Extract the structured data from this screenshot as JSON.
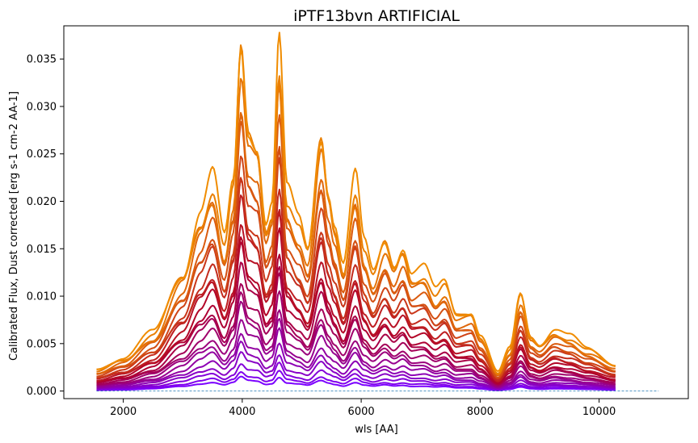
{
  "chart_data": {
    "type": "line",
    "title": "iPTF13bvn ARTIFICIAL",
    "xlabel": "wls [AA]",
    "ylabel": "Calibrated Flux, Dust corrected [erg s-1 cm-2 AA-1]",
    "xlim": [
      1000,
      11500
    ],
    "ylim": [
      -0.0008,
      0.0385
    ],
    "x_ticks": [
      2000,
      4000,
      6000,
      8000,
      10000
    ],
    "y_ticks": [
      0.0,
      0.005,
      0.01,
      0.015,
      0.02,
      0.025,
      0.03,
      0.035
    ],
    "x_tick_labels": [
      "2000",
      "4000",
      "6000",
      "8000",
      "10000"
    ],
    "y_tick_labels": [
      "0.000",
      "0.005",
      "0.010",
      "0.015",
      "0.020",
      "0.025",
      "0.030",
      "0.035"
    ],
    "grid": false,
    "legend": "none",
    "wavelength_range": [
      1550,
      10280
    ],
    "envelope": {
      "x": [
        1550,
        2000,
        2500,
        3000,
        3300,
        3500,
        3700,
        3850,
        3980,
        4100,
        4250,
        4400,
        4500,
        4620,
        4750,
        4950,
        5100,
        5330,
        5450,
        5550,
        5700,
        5900,
        6050,
        6200,
        6400,
        6550,
        6700,
        6850,
        7050,
        7250,
        7400,
        7600,
        7850,
        8000,
        8300,
        8500,
        8680,
        8850,
        9000,
        9250,
        9500,
        9800,
        10280
      ],
      "y": [
        0.0023,
        0.0035,
        0.0062,
        0.0125,
        0.019,
        0.0227,
        0.016,
        0.022,
        0.0368,
        0.028,
        0.0265,
        0.018,
        0.02,
        0.0368,
        0.021,
        0.018,
        0.015,
        0.0275,
        0.0215,
        0.018,
        0.0135,
        0.0225,
        0.0155,
        0.0125,
        0.016,
        0.0135,
        0.0155,
        0.0125,
        0.013,
        0.0105,
        0.0115,
        0.0082,
        0.0085,
        0.006,
        0.002,
        0.0045,
        0.0103,
        0.0058,
        0.005,
        0.0065,
        0.0058,
        0.0045,
        0.0028
      ]
    },
    "series_count": 24,
    "series_scale_min": 0.04,
    "series_scale_max": 1.0,
    "color_range": [
      "#7b00ff",
      "#b0002a",
      "#f08c00"
    ],
    "zero_line": {
      "y": 0.0,
      "x": [
        1550,
        11000
      ],
      "color": "#1f77b4",
      "style": "dashed"
    }
  }
}
